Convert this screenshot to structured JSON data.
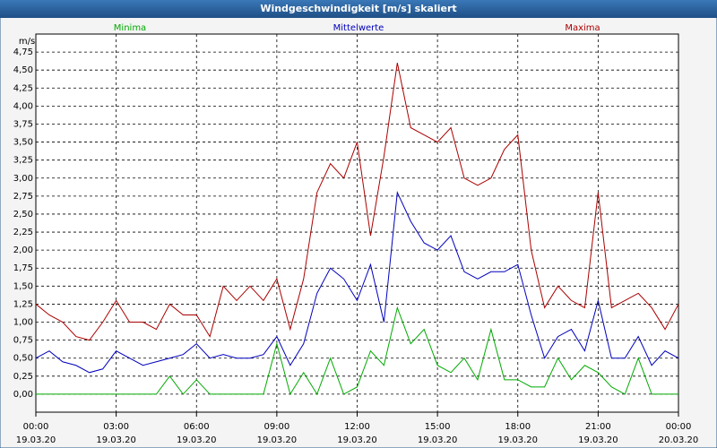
{
  "chart_data": {
    "type": "line",
    "title": "Windgeschwindigkeit [m/s] skaliert",
    "y_label": "m/s",
    "x": [
      0,
      0.5,
      1,
      1.5,
      2,
      2.5,
      3,
      3.5,
      4,
      4.5,
      5,
      5.5,
      6,
      6.5,
      7,
      7.5,
      8,
      8.5,
      9,
      9.5,
      10,
      10.5,
      11,
      11.5,
      12,
      12.5,
      13,
      13.5,
      14,
      14.5,
      15,
      15.5,
      16,
      16.5,
      17,
      17.5,
      18,
      18.5,
      19,
      19.5,
      20,
      20.5,
      21,
      21.5,
      22,
      22.5,
      23,
      23.5,
      24
    ],
    "series": [
      {
        "name": "Minima",
        "color": "#00aa00",
        "values": [
          0,
          0,
          0,
          0,
          0,
          0,
          0,
          0,
          0,
          0,
          0.25,
          0,
          0.2,
          0,
          0,
          0,
          0,
          0,
          0.7,
          0,
          0.3,
          0,
          0.5,
          0,
          0.1,
          0.6,
          0.4,
          1.2,
          0.7,
          0.9,
          0.4,
          0.3,
          0.5,
          0.2,
          0.9,
          0.2,
          0.2,
          0.1,
          0.1,
          0.5,
          0.2,
          0.4,
          0.3,
          0.1,
          0,
          0.5,
          0,
          0,
          0
        ]
      },
      {
        "name": "Mittelwerte",
        "color": "#0000bb",
        "values": [
          0.5,
          0.6,
          0.45,
          0.4,
          0.3,
          0.35,
          0.6,
          0.5,
          0.4,
          0.45,
          0.5,
          0.55,
          0.7,
          0.5,
          0.55,
          0.5,
          0.5,
          0.55,
          0.8,
          0.4,
          0.7,
          1.4,
          1.75,
          1.6,
          1.3,
          1.8,
          1.0,
          2.8,
          2.4,
          2.1,
          2.0,
          2.2,
          1.7,
          1.6,
          1.7,
          1.7,
          1.8,
          1.1,
          0.5,
          0.8,
          0.9,
          0.6,
          1.3,
          0.5,
          0.5,
          0.8,
          0.4,
          0.6,
          0.5
        ]
      },
      {
        "name": "Maxima",
        "color": "#aa0000",
        "values": [
          1.25,
          1.1,
          1.0,
          0.8,
          0.75,
          1.0,
          1.3,
          1.0,
          1.0,
          0.9,
          1.25,
          1.1,
          1.1,
          0.8,
          1.5,
          1.3,
          1.5,
          1.3,
          1.6,
          0.9,
          1.6,
          2.8,
          3.2,
          3.0,
          3.5,
          2.2,
          3.3,
          4.6,
          3.7,
          3.6,
          3.5,
          3.7,
          3.0,
          2.9,
          3.0,
          3.4,
          3.6,
          2.0,
          1.2,
          1.5,
          1.3,
          1.2,
          2.8,
          1.2,
          1.3,
          1.4,
          1.2,
          0.9,
          1.25
        ]
      }
    ],
    "xlim": [
      0,
      24
    ],
    "xticks": [
      {
        "value": 0,
        "label": "00:00"
      },
      {
        "value": 3,
        "label": "03:00"
      },
      {
        "value": 6,
        "label": "06:00"
      },
      {
        "value": 9,
        "label": "09:00"
      },
      {
        "value": 12,
        "label": "12:00"
      },
      {
        "value": 15,
        "label": "15:00"
      },
      {
        "value": 18,
        "label": "18:00"
      },
      {
        "value": 21,
        "label": "21:00"
      },
      {
        "value": 24,
        "label": "00:00"
      }
    ],
    "xtick_dates": [
      "19.03.20",
      "19.03.20",
      "19.03.20",
      "19.03.20",
      "19.03.20",
      "19.03.20",
      "19.03.20",
      "19.03.20",
      "20.03.20"
    ],
    "ylim": [
      -0.25,
      5.0
    ],
    "yticks": [
      {
        "value": 0,
        "label": "0,00"
      },
      {
        "value": 0.25,
        "label": "0,25"
      },
      {
        "value": 0.5,
        "label": "0,50"
      },
      {
        "value": 0.75,
        "label": "0,75"
      },
      {
        "value": 1,
        "label": "1,00"
      },
      {
        "value": 1.25,
        "label": "1,25"
      },
      {
        "value": 1.5,
        "label": "1,50"
      },
      {
        "value": 1.75,
        "label": "1,75"
      },
      {
        "value": 2,
        "label": "2,00"
      },
      {
        "value": 2.25,
        "label": "2,25"
      },
      {
        "value": 2.5,
        "label": "2,50"
      },
      {
        "value": 2.75,
        "label": "2,75"
      },
      {
        "value": 3,
        "label": "3,00"
      },
      {
        "value": 3.25,
        "label": "3,25"
      },
      {
        "value": 3.5,
        "label": "3,50"
      },
      {
        "value": 3.75,
        "label": "3,75"
      },
      {
        "value": 4,
        "label": "4,00"
      },
      {
        "value": 4.25,
        "label": "4,25"
      },
      {
        "value": 4.5,
        "label": "4,50"
      },
      {
        "value": 4.75,
        "label": "4,75"
      }
    ],
    "grid": true
  }
}
